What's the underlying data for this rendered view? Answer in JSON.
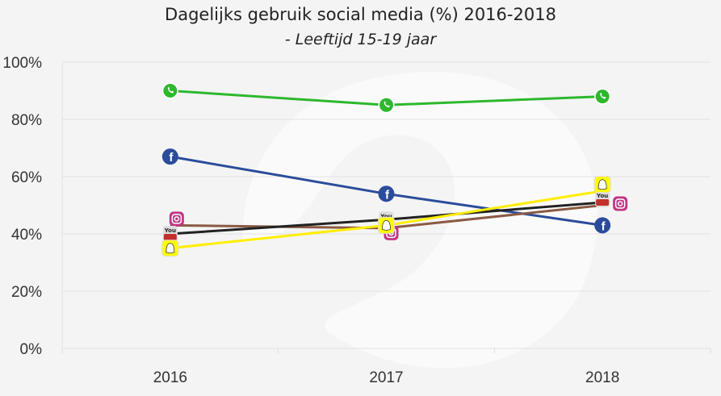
{
  "chart_data": {
    "type": "line",
    "title": "Dagelijks gebruik social media (%) 2016-2018",
    "subtitle": "- Leeftijd 15-19 jaar",
    "categories": [
      "2016",
      "2017",
      "2018"
    ],
    "ylim": [
      0,
      100
    ],
    "yticks": [
      "0%",
      "20%",
      "40%",
      "60%",
      "80%",
      "100%"
    ],
    "grid": true,
    "series": [
      {
        "name": "WhatsApp",
        "icon": "whatsapp-icon",
        "color": "#2db82d",
        "values": [
          90,
          85,
          88
        ]
      },
      {
        "name": "Facebook",
        "icon": "facebook-icon",
        "color": "#2b4c9b",
        "values": [
          67,
          54,
          43
        ]
      },
      {
        "name": "Instagram",
        "icon": "instagram-icon",
        "color": "#8a5a44",
        "values": [
          43,
          42,
          50
        ]
      },
      {
        "name": "YouTube",
        "icon": "youtube-icon",
        "color": "#222222",
        "values": [
          40,
          45,
          51
        ]
      },
      {
        "name": "Snapchat",
        "icon": "snapchat-icon",
        "color": "#ffee00",
        "values": [
          35,
          43,
          55
        ]
      }
    ]
  }
}
